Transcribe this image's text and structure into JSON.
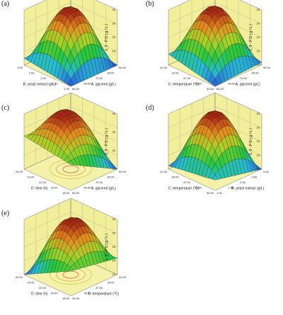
{
  "figure": {
    "panel_labels": [
      "(a)",
      "(b)",
      "(c)",
      "(d)",
      "(e)"
    ]
  },
  "chart_data": [
    {
      "type": "surface",
      "panel": "(a)",
      "zlabel": "1, 3 - P D   ( g / L )",
      "xlabel": "B: yeast extract (g/L)",
      "ylabel": "A: glycerol (g/L)",
      "x_ticks": [
        "1.00",
        "1.50",
        "2.00",
        "2.50",
        "3.00"
      ],
      "y_ticks": [
        "50.00",
        "60.00",
        "70.00",
        "80.00",
        "90.00"
      ],
      "z_ticks": [
        "14",
        "18",
        "22",
        "26",
        "30"
      ],
      "zlim": [
        14,
        30
      ],
      "peak": 30,
      "corners": [
        14,
        16,
        14,
        16
      ]
    },
    {
      "type": "surface",
      "panel": "(b)",
      "zlabel": "1, 3 - P D   ( g / L )",
      "xlabel": "C: temperature (°C)",
      "ylabel": "A: glycerol (g/L)",
      "x_ticks": [
        "33.00",
        "35.00",
        "37.00",
        "39.00",
        "41.00"
      ],
      "y_ticks": [
        "50.00",
        "60.00",
        "70.00",
        "80.00",
        "90.00"
      ],
      "z_ticks": [
        "10",
        "15",
        "20",
        "25",
        "30"
      ],
      "zlim": [
        10,
        30
      ],
      "peak": 30,
      "corners": [
        10,
        14,
        11,
        15
      ]
    },
    {
      "type": "surface",
      "panel": "(c)",
      "zlabel": "1, 3 - P D   ( g / L )",
      "xlabel": "D: time (h)",
      "ylabel": "A: glycerol (g/L)",
      "x_ticks": [
        "18.00",
        "20.00",
        "22.00",
        "24.00",
        "26.00"
      ],
      "y_ticks": [
        "50.00",
        "60.00",
        "70.00",
        "80.00",
        "90.00"
      ],
      "z_ticks": [
        "15",
        "20",
        "25",
        "30"
      ],
      "zlim": [
        15,
        30
      ],
      "peak": 30,
      "corners": [
        22,
        24,
        15,
        23
      ]
    },
    {
      "type": "surface",
      "panel": "(d)",
      "zlabel": "1, 3 - P D   ( g / L )",
      "xlabel": "C: temperature (°C)",
      "ylabel": "B: yeast extract (g/L)",
      "x_ticks": [
        "33.00",
        "35.00",
        "37.00",
        "39.00",
        "41.00"
      ],
      "y_ticks": [
        "1.00",
        "1.50",
        "2.00",
        "2.50",
        "3.00"
      ],
      "z_ticks": [
        "14",
        "18",
        "22",
        "26",
        "30"
      ],
      "zlim": [
        14,
        30
      ],
      "peak": 30,
      "corners": [
        17,
        15,
        14,
        18
      ]
    },
    {
      "type": "surface",
      "panel": "(e)",
      "zlabel": "1, 3 - P D   ( g / L )",
      "xlabel": "D: time (h)",
      "ylabel": "C: temperature (°C)",
      "x_ticks": [
        "18.00",
        "20.00",
        "22.00",
        "24.00",
        "26.00"
      ],
      "y_ticks": [
        "33.00",
        "35.00",
        "37.00",
        "39.00",
        "41.00"
      ],
      "z_ticks": [
        "10",
        "15",
        "20",
        "25",
        "30"
      ],
      "zlim": [
        10,
        30
      ],
      "peak": 30,
      "corners": [
        19,
        10,
        16,
        14
      ]
    }
  ]
}
